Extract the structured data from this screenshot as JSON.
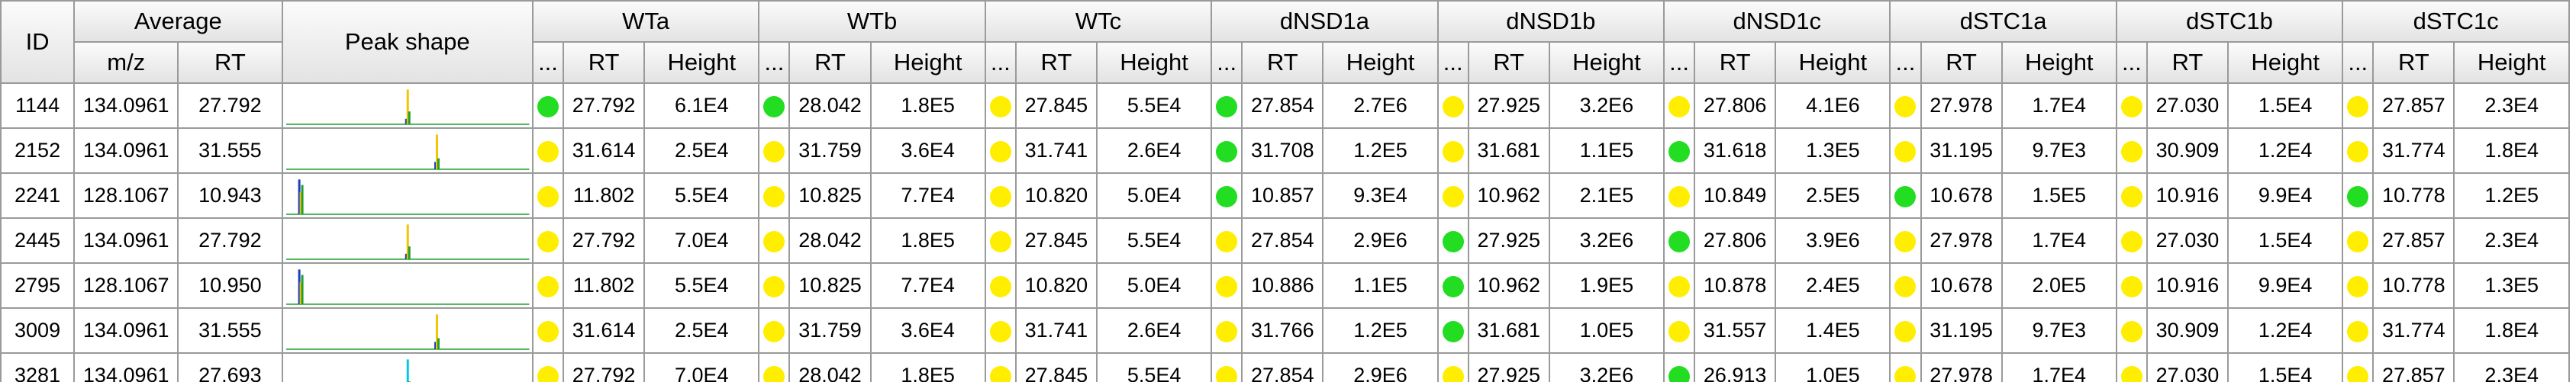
{
  "colors": {
    "green": "#22dd22",
    "yellow": "#ffee00",
    "header_bg": "#e8e8e8",
    "grid_line": "#9a9a9a"
  },
  "headers": {
    "id": "ID",
    "average": "Average",
    "mz": "m/z",
    "rt": "RT",
    "peak_shape": "Peak shape",
    "dots": "...",
    "height": "Height",
    "samples": [
      "WTa",
      "WTb",
      "WTc",
      "dNSD1a",
      "dNSD1b",
      "dNSD1c",
      "dSTC1a",
      "dSTC1b",
      "dSTC1c"
    ]
  },
  "rows": [
    {
      "id": "1144",
      "mz": "134.0961",
      "rt": "27.792",
      "peak": {
        "center": 0.5,
        "heights": [
          0.15,
          0.95,
          0.35
        ],
        "colors": [
          "#1f3fbf",
          "#f5c400",
          "#1fa02f"
        ]
      },
      "samples": [
        {
          "status": "green",
          "rt": "27.792",
          "height": "6.1E4"
        },
        {
          "status": "green",
          "rt": "28.042",
          "height": "1.8E5"
        },
        {
          "status": "yellow",
          "rt": "27.845",
          "height": "5.5E4"
        },
        {
          "status": "green",
          "rt": "27.854",
          "height": "2.7E6"
        },
        {
          "status": "yellow",
          "rt": "27.925",
          "height": "3.2E6"
        },
        {
          "status": "yellow",
          "rt": "27.806",
          "height": "4.1E6"
        },
        {
          "status": "yellow",
          "rt": "27.978",
          "height": "1.7E4"
        },
        {
          "status": "yellow",
          "rt": "27.030",
          "height": "1.5E4"
        },
        {
          "status": "yellow",
          "rt": "27.857",
          "height": "2.3E4"
        }
      ]
    },
    {
      "id": "2152",
      "mz": "134.0961",
      "rt": "31.555",
      "peak": {
        "center": 0.62,
        "heights": [
          0.2,
          0.95,
          0.3
        ],
        "colors": [
          "#1f3fbf",
          "#f5c400",
          "#1fa02f"
        ]
      },
      "samples": [
        {
          "status": "yellow",
          "rt": "31.614",
          "height": "2.5E4"
        },
        {
          "status": "yellow",
          "rt": "31.759",
          "height": "3.6E4"
        },
        {
          "status": "yellow",
          "rt": "31.741",
          "height": "2.6E4"
        },
        {
          "status": "green",
          "rt": "31.708",
          "height": "1.2E5"
        },
        {
          "status": "yellow",
          "rt": "31.681",
          "height": "1.1E5"
        },
        {
          "status": "green",
          "rt": "31.618",
          "height": "1.3E5"
        },
        {
          "status": "yellow",
          "rt": "31.195",
          "height": "9.7E3"
        },
        {
          "status": "yellow",
          "rt": "30.909",
          "height": "1.2E4"
        },
        {
          "status": "yellow",
          "rt": "31.774",
          "height": "1.8E4"
        }
      ]
    },
    {
      "id": "2241",
      "mz": "128.1067",
      "rt": "10.943",
      "peak": {
        "center": 0.06,
        "heights": [
          0.95,
          0.6,
          0.8
        ],
        "colors": [
          "#1f3fbf",
          "#f5c400",
          "#1fa02f"
        ]
      },
      "samples": [
        {
          "status": "yellow",
          "rt": "11.802",
          "height": "5.5E4"
        },
        {
          "status": "yellow",
          "rt": "10.825",
          "height": "7.7E4"
        },
        {
          "status": "yellow",
          "rt": "10.820",
          "height": "5.0E4"
        },
        {
          "status": "green",
          "rt": "10.857",
          "height": "9.3E4"
        },
        {
          "status": "yellow",
          "rt": "10.962",
          "height": "2.1E5"
        },
        {
          "status": "yellow",
          "rt": "10.849",
          "height": "2.5E5"
        },
        {
          "status": "green",
          "rt": "10.678",
          "height": "1.5E5"
        },
        {
          "status": "yellow",
          "rt": "10.916",
          "height": "9.9E4"
        },
        {
          "status": "green",
          "rt": "10.778",
          "height": "1.2E5"
        }
      ]
    },
    {
      "id": "2445",
      "mz": "134.0961",
      "rt": "27.792",
      "peak": {
        "center": 0.5,
        "heights": [
          0.15,
          0.95,
          0.35
        ],
        "colors": [
          "#1f3fbf",
          "#f5c400",
          "#1fa02f"
        ]
      },
      "samples": [
        {
          "status": "yellow",
          "rt": "27.792",
          "height": "7.0E4"
        },
        {
          "status": "yellow",
          "rt": "28.042",
          "height": "1.8E5"
        },
        {
          "status": "yellow",
          "rt": "27.845",
          "height": "5.5E4"
        },
        {
          "status": "yellow",
          "rt": "27.854",
          "height": "2.9E6"
        },
        {
          "status": "green",
          "rt": "27.925",
          "height": "3.2E6"
        },
        {
          "status": "green",
          "rt": "27.806",
          "height": "3.9E6"
        },
        {
          "status": "yellow",
          "rt": "27.978",
          "height": "1.7E4"
        },
        {
          "status": "yellow",
          "rt": "27.030",
          "height": "1.5E4"
        },
        {
          "status": "yellow",
          "rt": "27.857",
          "height": "2.3E4"
        }
      ]
    },
    {
      "id": "2795",
      "mz": "128.1067",
      "rt": "10.950",
      "peak": {
        "center": 0.06,
        "heights": [
          0.95,
          0.6,
          0.8
        ],
        "colors": [
          "#1f3fbf",
          "#f5c400",
          "#1fa02f"
        ]
      },
      "samples": [
        {
          "status": "yellow",
          "rt": "11.802",
          "height": "5.5E4"
        },
        {
          "status": "yellow",
          "rt": "10.825",
          "height": "7.7E4"
        },
        {
          "status": "yellow",
          "rt": "10.820",
          "height": "5.0E4"
        },
        {
          "status": "yellow",
          "rt": "10.886",
          "height": "1.1E5"
        },
        {
          "status": "green",
          "rt": "10.962",
          "height": "1.9E5"
        },
        {
          "status": "yellow",
          "rt": "10.878",
          "height": "2.4E5"
        },
        {
          "status": "yellow",
          "rt": "10.678",
          "height": "2.0E5"
        },
        {
          "status": "yellow",
          "rt": "10.916",
          "height": "9.9E4"
        },
        {
          "status": "yellow",
          "rt": "10.778",
          "height": "1.3E5"
        }
      ]
    },
    {
      "id": "3009",
      "mz": "134.0961",
      "rt": "31.555",
      "peak": {
        "center": 0.62,
        "heights": [
          0.2,
          0.95,
          0.3
        ],
        "colors": [
          "#1f3fbf",
          "#f5c400",
          "#1fa02f"
        ]
      },
      "samples": [
        {
          "status": "yellow",
          "rt": "31.614",
          "height": "2.5E4"
        },
        {
          "status": "yellow",
          "rt": "31.759",
          "height": "3.6E4"
        },
        {
          "status": "yellow",
          "rt": "31.741",
          "height": "2.6E4"
        },
        {
          "status": "yellow",
          "rt": "31.766",
          "height": "1.2E5"
        },
        {
          "status": "green",
          "rt": "31.681",
          "height": "1.0E5"
        },
        {
          "status": "yellow",
          "rt": "31.557",
          "height": "1.4E5"
        },
        {
          "status": "yellow",
          "rt": "31.195",
          "height": "9.7E3"
        },
        {
          "status": "yellow",
          "rt": "30.909",
          "height": "1.2E4"
        },
        {
          "status": "yellow",
          "rt": "31.774",
          "height": "1.8E4"
        }
      ]
    },
    {
      "id": "3281",
      "mz": "134.0961",
      "rt": "27.693",
      "peak": {
        "center": 0.5,
        "heights": [
          0.2,
          0.95,
          0.35
        ],
        "colors": [
          "#1f3fbf",
          "#00c8e6",
          "#1fa02f"
        ]
      },
      "samples": [
        {
          "status": "yellow",
          "rt": "27.792",
          "height": "7.0E4"
        },
        {
          "status": "yellow",
          "rt": "28.042",
          "height": "1.8E5"
        },
        {
          "status": "yellow",
          "rt": "27.845",
          "height": "5.5E4"
        },
        {
          "status": "yellow",
          "rt": "27.854",
          "height": "2.9E6"
        },
        {
          "status": "yellow",
          "rt": "27.925",
          "height": "3.2E6"
        },
        {
          "status": "green",
          "rt": "26.913",
          "height": "1.0E5"
        },
        {
          "status": "yellow",
          "rt": "27.978",
          "height": "1.7E4"
        },
        {
          "status": "yellow",
          "rt": "27.030",
          "height": "1.5E4"
        },
        {
          "status": "yellow",
          "rt": "27.857",
          "height": "2.3E4"
        }
      ]
    }
  ]
}
